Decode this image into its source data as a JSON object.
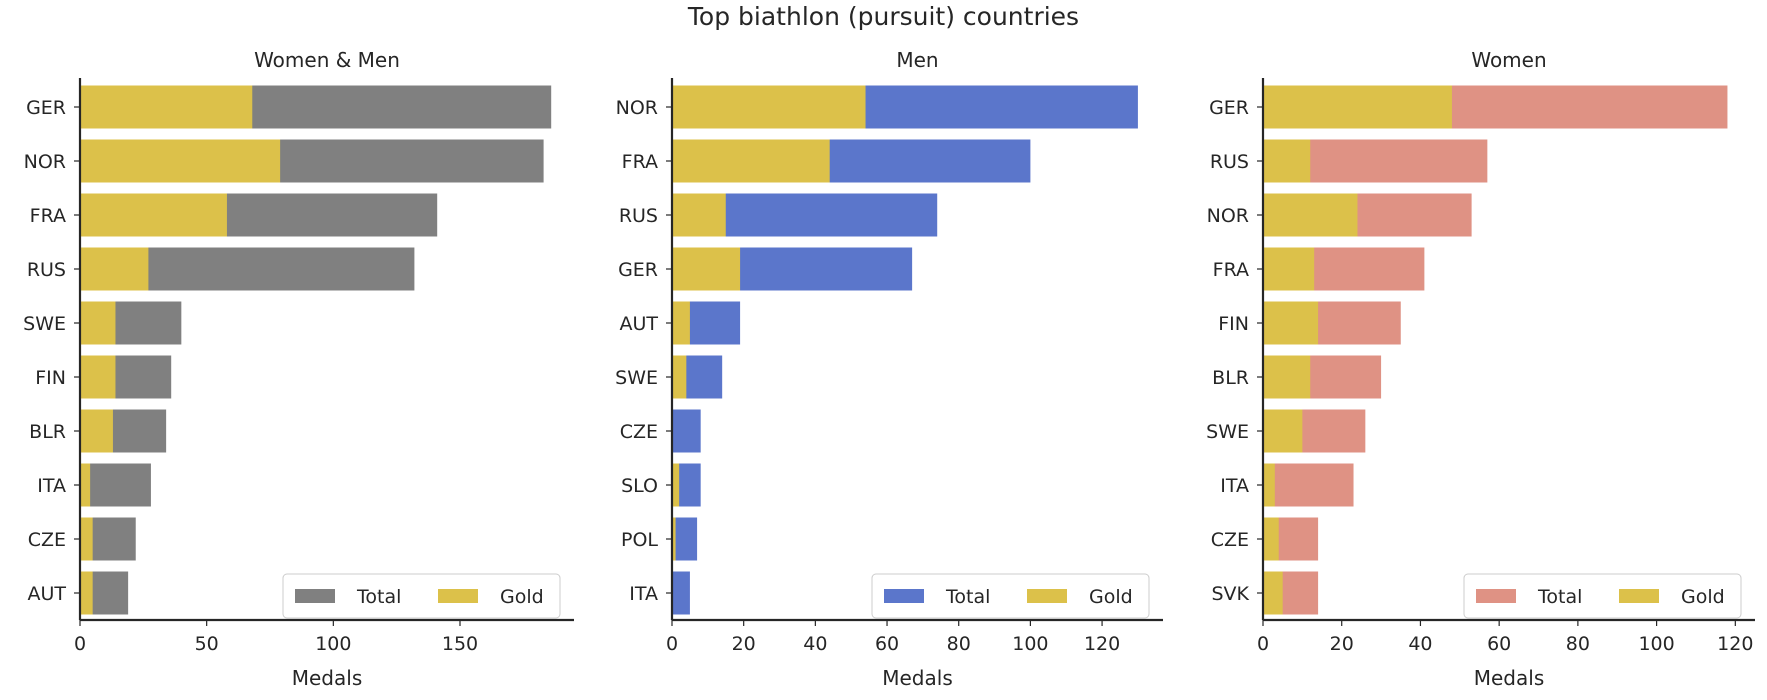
{
  "figure_title": "Top biathlon (pursuit) countries",
  "colors": {
    "gold": "#dcc14a",
    "total_all": "#808080",
    "total_men": "#5b76cb",
    "total_women": "#df9284",
    "axis": "#262626"
  },
  "chart_data": [
    {
      "type": "bar",
      "orientation": "horizontal",
      "title": "Women & Men",
      "xlabel": "Medals",
      "ylabel": "",
      "xlim": [
        0,
        195
      ],
      "xticks": [
        0,
        50,
        100,
        150
      ],
      "grid": false,
      "legend_position": "lower right",
      "categories": [
        "GER",
        "NOR",
        "FRA",
        "RUS",
        "SWE",
        "FIN",
        "BLR",
        "ITA",
        "CZE",
        "AUT"
      ],
      "series": [
        {
          "name": "Total",
          "color": "#808080",
          "values": [
            186,
            183,
            141,
            132,
            40,
            36,
            34,
            28,
            22,
            19
          ]
        },
        {
          "name": "Gold",
          "color": "#dcc14a",
          "values": [
            68,
            79,
            58,
            27,
            14,
            14,
            13,
            4,
            5,
            5
          ]
        }
      ]
    },
    {
      "type": "bar",
      "orientation": "horizontal",
      "title": "Men",
      "xlabel": "Medals",
      "ylabel": "",
      "xlim": [
        0,
        137
      ],
      "xticks": [
        0,
        20,
        40,
        60,
        80,
        100,
        120
      ],
      "grid": false,
      "legend_position": "lower right",
      "categories": [
        "NOR",
        "FRA",
        "RUS",
        "GER",
        "AUT",
        "SWE",
        "CZE",
        "SLO",
        "POL",
        "ITA"
      ],
      "series": [
        {
          "name": "Total",
          "color": "#5b76cb",
          "values": [
            130,
            100,
            74,
            67,
            19,
            14,
            8,
            8,
            7,
            5
          ]
        },
        {
          "name": "Gold",
          "color": "#dcc14a",
          "values": [
            54,
            44,
            15,
            19,
            5,
            4,
            0,
            2,
            1,
            0
          ]
        }
      ]
    },
    {
      "type": "bar",
      "orientation": "horizontal",
      "title": "Women",
      "xlabel": "Medals",
      "ylabel": "",
      "xlim": [
        0,
        125
      ],
      "xticks": [
        0,
        20,
        40,
        60,
        80,
        100,
        120
      ],
      "grid": false,
      "legend_position": "lower right",
      "categories": [
        "GER",
        "RUS",
        "NOR",
        "FRA",
        "FIN",
        "BLR",
        "SWE",
        "ITA",
        "CZE",
        "SVK"
      ],
      "series": [
        {
          "name": "Total",
          "color": "#df9284",
          "values": [
            118,
            57,
            53,
            41,
            35,
            30,
            26,
            23,
            14,
            14
          ]
        },
        {
          "name": "Gold",
          "color": "#dcc14a",
          "values": [
            48,
            12,
            24,
            13,
            14,
            12,
            10,
            3,
            4,
            5
          ]
        }
      ]
    }
  ]
}
